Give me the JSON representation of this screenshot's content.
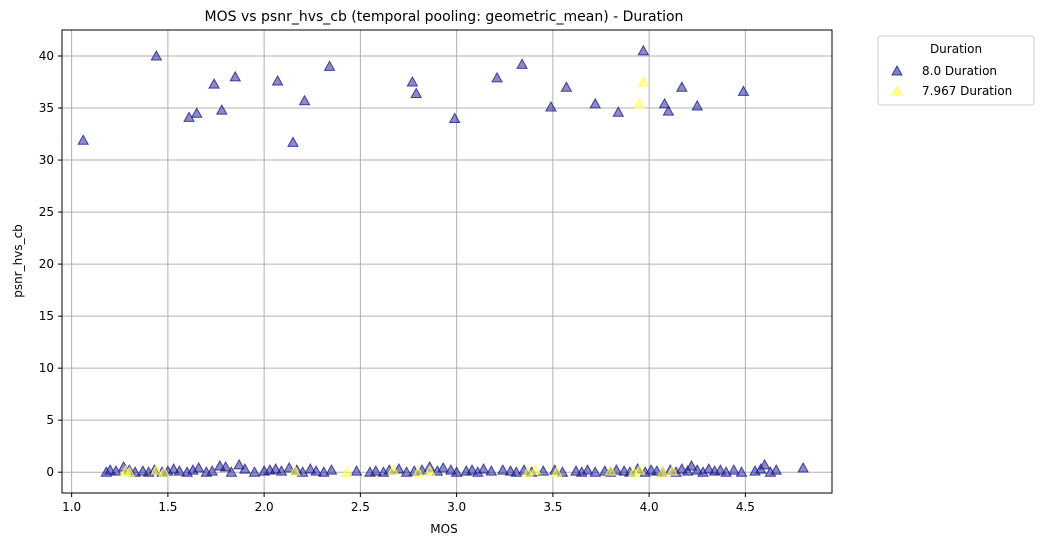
{
  "chart_data": {
    "type": "scatter",
    "title": "MOS vs psnr_hvs_cb (temporal pooling: geometric_mean) - Duration",
    "xlabel": "MOS",
    "ylabel": "psnr_hvs_cb",
    "xlim": [
      0.95,
      4.95
    ],
    "ylim": [
      -2,
      42.5
    ],
    "xticks": [
      1.0,
      1.5,
      2.0,
      2.5,
      3.0,
      3.5,
      4.0,
      4.5
    ],
    "xtick_labels": [
      "1.0",
      "1.5",
      "2.0",
      "2.5",
      "3.0",
      "3.5",
      "4.0",
      "4.5"
    ],
    "yticks": [
      0,
      5,
      10,
      15,
      20,
      25,
      30,
      35,
      40
    ],
    "ytick_labels": [
      "0",
      "5",
      "10",
      "15",
      "20",
      "25",
      "30",
      "35",
      "40"
    ],
    "grid": true,
    "marker": "triangle-up",
    "legend": {
      "title": "Duration",
      "placement": "outside-top-right"
    },
    "series": [
      {
        "name": "8.0 Duration",
        "color": "#1a1a8c",
        "points": [
          [
            1.06,
            31.9
          ],
          [
            1.44,
            40.0
          ],
          [
            1.61,
            34.1
          ],
          [
            1.65,
            34.5
          ],
          [
            1.74,
            37.3
          ],
          [
            1.78,
            34.8
          ],
          [
            1.85,
            38.0
          ],
          [
            2.07,
            37.6
          ],
          [
            2.15,
            31.7
          ],
          [
            2.21,
            35.7
          ],
          [
            2.34,
            39.0
          ],
          [
            2.77,
            37.5
          ],
          [
            2.79,
            36.4
          ],
          [
            2.99,
            34.0
          ],
          [
            3.21,
            37.9
          ],
          [
            3.34,
            39.2
          ],
          [
            3.49,
            35.1
          ],
          [
            3.57,
            37.0
          ],
          [
            3.72,
            35.4
          ],
          [
            3.84,
            34.6
          ],
          [
            3.97,
            40.5
          ],
          [
            4.08,
            35.4
          ],
          [
            4.1,
            34.7
          ],
          [
            4.17,
            37.0
          ],
          [
            4.25,
            35.2
          ],
          [
            4.49,
            36.6
          ],
          [
            1.18,
            0.0
          ],
          [
            1.2,
            0.2
          ],
          [
            1.23,
            0.1
          ],
          [
            1.27,
            0.5
          ],
          [
            1.3,
            0.2
          ],
          [
            1.33,
            0.0
          ],
          [
            1.37,
            0.1
          ],
          [
            1.4,
            0.0
          ],
          [
            1.43,
            0.2
          ],
          [
            1.47,
            0.0
          ],
          [
            1.5,
            0.1
          ],
          [
            1.53,
            0.3
          ],
          [
            1.56,
            0.1
          ],
          [
            1.6,
            0.0
          ],
          [
            1.63,
            0.2
          ],
          [
            1.66,
            0.4
          ],
          [
            1.7,
            0.0
          ],
          [
            1.73,
            0.1
          ],
          [
            1.77,
            0.6
          ],
          [
            1.8,
            0.5
          ],
          [
            1.83,
            0.0
          ],
          [
            1.87,
            0.7
          ],
          [
            1.9,
            0.3
          ],
          [
            1.95,
            0.0
          ],
          [
            2.0,
            0.1
          ],
          [
            2.03,
            0.2
          ],
          [
            2.06,
            0.3
          ],
          [
            2.09,
            0.1
          ],
          [
            2.13,
            0.4
          ],
          [
            2.17,
            0.2
          ],
          [
            2.2,
            0.0
          ],
          [
            2.24,
            0.3
          ],
          [
            2.27,
            0.1
          ],
          [
            2.31,
            0.0
          ],
          [
            2.35,
            0.2
          ],
          [
            2.48,
            0.1
          ],
          [
            2.55,
            0.0
          ],
          [
            2.58,
            0.1
          ],
          [
            2.62,
            0.0
          ],
          [
            2.65,
            0.2
          ],
          [
            2.7,
            0.3
          ],
          [
            2.74,
            0.0
          ],
          [
            2.78,
            0.1
          ],
          [
            2.82,
            0.2
          ],
          [
            2.86,
            0.5
          ],
          [
            2.9,
            0.1
          ],
          [
            2.93,
            0.4
          ],
          [
            2.97,
            0.2
          ],
          [
            3.0,
            0.0
          ],
          [
            3.05,
            0.1
          ],
          [
            3.08,
            0.2
          ],
          [
            3.11,
            0.0
          ],
          [
            3.14,
            0.3
          ],
          [
            3.18,
            0.1
          ],
          [
            3.24,
            0.2
          ],
          [
            3.28,
            0.1
          ],
          [
            3.31,
            0.0
          ],
          [
            3.35,
            0.2
          ],
          [
            3.39,
            0.0
          ],
          [
            3.45,
            0.1
          ],
          [
            3.51,
            0.2
          ],
          [
            3.55,
            0.0
          ],
          [
            3.62,
            0.1
          ],
          [
            3.65,
            0.0
          ],
          [
            3.68,
            0.2
          ],
          [
            3.72,
            0.0
          ],
          [
            3.77,
            0.1
          ],
          [
            3.8,
            0.0
          ],
          [
            3.83,
            0.2
          ],
          [
            3.87,
            0.1
          ],
          [
            3.9,
            0.0
          ],
          [
            3.94,
            0.3
          ],
          [
            3.98,
            0.0
          ],
          [
            4.01,
            0.2
          ],
          [
            4.04,
            0.1
          ],
          [
            4.07,
            0.0
          ],
          [
            4.11,
            0.2
          ],
          [
            4.14,
            0.0
          ],
          [
            4.17,
            0.3
          ],
          [
            4.2,
            0.1
          ],
          [
            4.22,
            0.6
          ],
          [
            4.25,
            0.2
          ],
          [
            4.28,
            0.0
          ],
          [
            4.31,
            0.3
          ],
          [
            4.34,
            0.1
          ],
          [
            4.37,
            0.2
          ],
          [
            4.4,
            0.0
          ],
          [
            4.44,
            0.2
          ],
          [
            4.48,
            0.0
          ],
          [
            4.55,
            0.1
          ],
          [
            4.58,
            0.3
          ],
          [
            4.6,
            0.7
          ],
          [
            4.63,
            0.0
          ],
          [
            4.66,
            0.2
          ],
          [
            4.8,
            0.4
          ]
        ]
      },
      {
        "name": "7.967 Duration",
        "color": "#ffff55",
        "points": [
          [
            3.97,
            37.5
          ],
          [
            3.95,
            35.4
          ],
          [
            1.28,
            0.1
          ],
          [
            1.3,
            0.0
          ],
          [
            1.44,
            0.2
          ],
          [
            1.48,
            0.0
          ],
          [
            2.16,
            0.1
          ],
          [
            2.43,
            0.0
          ],
          [
            2.67,
            0.2
          ],
          [
            2.8,
            0.0
          ],
          [
            2.86,
            0.1
          ],
          [
            3.37,
            0.0
          ],
          [
            3.41,
            0.2
          ],
          [
            3.52,
            0.0
          ],
          [
            3.8,
            0.1
          ],
          [
            3.92,
            0.0
          ],
          [
            3.95,
            0.2
          ],
          [
            4.07,
            0.0
          ],
          [
            4.12,
            0.1
          ]
        ]
      }
    ]
  }
}
